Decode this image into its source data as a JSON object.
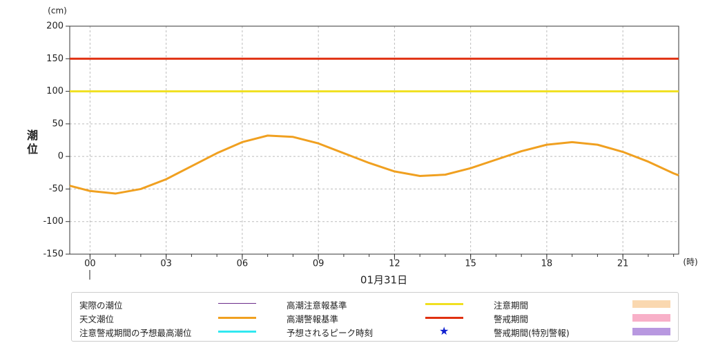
{
  "chart_data": {
    "type": "line",
    "y_unit": "(cm)",
    "x_unit": "(時)",
    "y_label": "潮位",
    "date_label": "01月31日",
    "xlim": [
      -0.8,
      23.2
    ],
    "xticks": [
      {
        "value": 0,
        "label": "00"
      },
      {
        "value": 3,
        "label": "03"
      },
      {
        "value": 6,
        "label": "06"
      },
      {
        "value": 9,
        "label": "09"
      },
      {
        "value": 12,
        "label": "12"
      },
      {
        "value": 15,
        "label": "15"
      },
      {
        "value": 18,
        "label": "18"
      },
      {
        "value": 21,
        "label": "21"
      }
    ],
    "ylim": [
      -150,
      200
    ],
    "yticks": [
      -150,
      -100,
      -50,
      0,
      50,
      100,
      150,
      200
    ],
    "grid": true,
    "x": [
      -0.8,
      0,
      1,
      2,
      3,
      4,
      5,
      6,
      7,
      8,
      9,
      10,
      11,
      12,
      13,
      14,
      15,
      16,
      17,
      18,
      19,
      20,
      21,
      22,
      23,
      23.2
    ],
    "series": [
      {
        "color": "#f0a020",
        "values": [
          -45,
          -53,
          -57,
          -50,
          -35,
          -15,
          5,
          22,
          32,
          30,
          20,
          5,
          -10,
          -23,
          -30,
          -28,
          -18,
          -5,
          8,
          18,
          22,
          18,
          7,
          -8,
          -26,
          -29
        ]
      }
    ],
    "reference_lines": [
      {
        "value": 100,
        "color": "#f0e020"
      },
      {
        "value": 150,
        "color": "#e03010"
      }
    ],
    "legend": [
      {
        "name": "実際の潮位",
        "color": "#6a2a8a",
        "symbol": "thin-line"
      },
      {
        "name": "天文潮位",
        "color": "#f0a020",
        "symbol": "line"
      },
      {
        "name": "注意警戒期間の予想最高潮位",
        "color": "#30e8f0",
        "symbol": "line"
      },
      {
        "name": "高潮注意報基準",
        "color": "#f0e020",
        "symbol": "line"
      },
      {
        "name": "高潮警報基準",
        "color": "#e03010",
        "symbol": "line"
      },
      {
        "name": "予想されるピーク時刻",
        "color": "#1020d0",
        "symbol": "star"
      },
      {
        "name": "注意期間",
        "color": "#fad8b0",
        "symbol": "band"
      },
      {
        "name": "警戒期間",
        "color": "#f8b0c8",
        "symbol": "band"
      },
      {
        "name": "警戒期間(特別警報)",
        "color": "#b898e0",
        "symbol": "band"
      }
    ]
  }
}
